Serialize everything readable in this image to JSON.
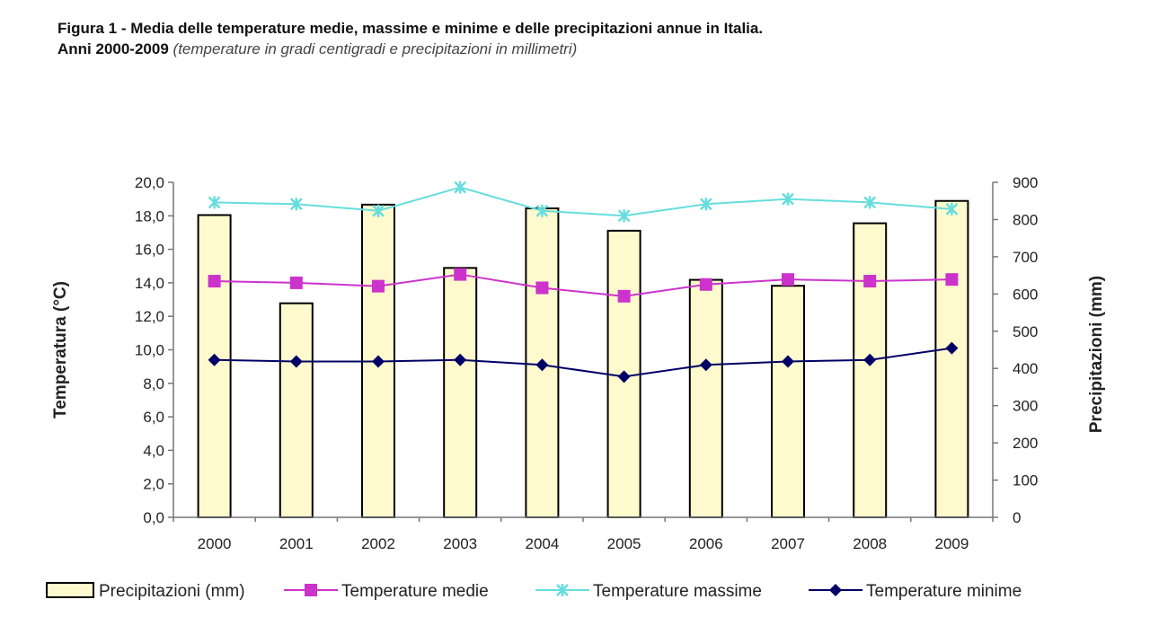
{
  "figure": {
    "title_line1": "Figura 1 - Media delle temperature medie, massime e minime e delle precipitazioni annue in Italia.",
    "title_line2": "Anni 2000-2009",
    "subtitle": "(temperature in gradi centigradi e precipitazioni in millimetri)"
  },
  "chart_data": {
    "type": "bar",
    "categories": [
      "2000",
      "2001",
      "2002",
      "2003",
      "2004",
      "2005",
      "2006",
      "2007",
      "2008",
      "2009"
    ],
    "ylabel_left": "Temperatura (°C)",
    "ylabel_right": "Precipitazioni (mm)",
    "ylim_left": [
      0,
      20
    ],
    "ylim_right": [
      0,
      900
    ],
    "yticks_left": [
      "0,0",
      "2,0",
      "4,0",
      "6,0",
      "8,0",
      "10,0",
      "12,0",
      "14,0",
      "16,0",
      "18,0",
      "20,0"
    ],
    "yticks_right": [
      "0",
      "100",
      "200",
      "300",
      "400",
      "500",
      "600",
      "700",
      "800",
      "900"
    ],
    "legend_position": "bottom",
    "series": [
      {
        "name": "Precipitazioni (mm)",
        "type": "bar",
        "axis": "right",
        "color": "#fffacd",
        "values": [
          812,
          575,
          840,
          670,
          830,
          770,
          638,
          622,
          790,
          850
        ]
      },
      {
        "name": "Temperature medie",
        "type": "line",
        "axis": "left",
        "color": "#cc33cc",
        "marker": "square",
        "values": [
          14.1,
          14.0,
          13.8,
          14.5,
          13.7,
          13.2,
          13.9,
          14.2,
          14.1,
          14.2
        ]
      },
      {
        "name": "Temperature massime",
        "type": "line",
        "axis": "left",
        "color": "#66dddd",
        "marker": "x",
        "values": [
          18.8,
          18.7,
          18.3,
          19.7,
          18.3,
          18.0,
          18.7,
          19.0,
          18.8,
          18.4
        ]
      },
      {
        "name": "Temperature minime",
        "type": "line",
        "axis": "left",
        "color": "#000066",
        "marker": "diamond",
        "values": [
          9.4,
          9.3,
          9.3,
          9.4,
          9.1,
          8.4,
          9.1,
          9.3,
          9.4,
          10.1
        ]
      }
    ]
  }
}
